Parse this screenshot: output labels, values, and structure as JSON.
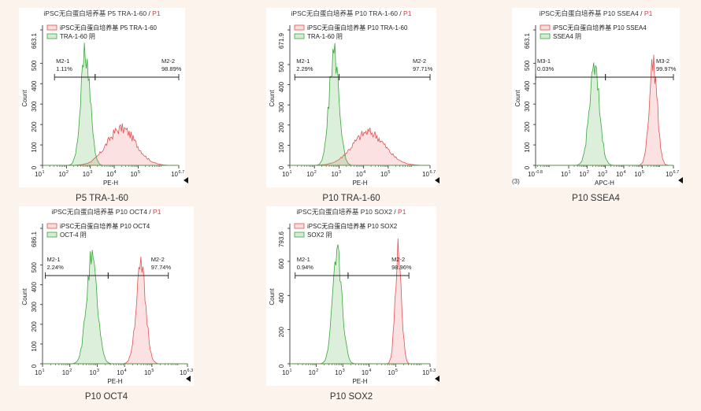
{
  "chart_data": [
    {
      "type": "histogram",
      "title_main": "iPSC无白蛋白培养基 P5 TRA-1-60 / ",
      "title_gate": "P1",
      "ylabel": "Count",
      "xlabel": "PE-H",
      "x_ticks": [
        "10",
        "1",
        "10",
        "2",
        "10",
        "3",
        "10",
        "4",
        "10",
        "5",
        "10",
        "6.7"
      ],
      "y_ticks": [
        "0",
        "100",
        "200",
        "300",
        "400",
        "500",
        "663.1"
      ],
      "xlim_log10": [
        1,
        6.7
      ],
      "ylim": [
        0,
        663.1
      ],
      "legend": [
        "iPSC无白蛋白培养基 P5 TRA-1-60",
        "TRA-1-60 阴"
      ],
      "series": [
        {
          "name": "iPSC无白蛋白培养基 P5 TRA-1-60",
          "color": "#e05252",
          "peak_log10": 4.3,
          "width_log10": 0.6,
          "peak_count": 180
        },
        {
          "name": "TRA-1-60 阴",
          "color": "#3aa63a",
          "peak_log10": 2.8,
          "width_log10": 0.2,
          "peak_count": 540
        }
      ],
      "gates": [
        {
          "name": "M2-1",
          "percent": "1.11%",
          "from_log10": 1.5,
          "to_log10": 3.2
        },
        {
          "name": "M2-2",
          "percent": "98.89%",
          "from_log10": 3.2,
          "to_log10": 6.7
        }
      ],
      "caption": "P5 TRA-1-60"
    },
    {
      "type": "histogram",
      "title_main": "iPSC无白蛋白培养基 P10 TRA-1-60 / ",
      "title_gate": "P1",
      "ylabel": "Count",
      "xlabel": "PE-H",
      "x_ticks": [
        "10",
        "1",
        "10",
        "2",
        "10",
        "3",
        "10",
        "4",
        "10",
        "5",
        "10",
        "6.7"
      ],
      "y_ticks": [
        "0",
        "100",
        "200",
        "300",
        "400",
        "500",
        "671.9"
      ],
      "xlim_log10": [
        1,
        6.7
      ],
      "ylim": [
        0,
        671.9
      ],
      "legend": [
        "iPSC无白蛋白培养基 P10 TRA-1-60",
        "TRA-1-60 阴"
      ],
      "series": [
        {
          "name": "iPSC无白蛋白培养基 P10 TRA-1-60",
          "color": "#e05252",
          "peak_log10": 4.2,
          "width_log10": 0.65,
          "peak_count": 165
        },
        {
          "name": "TRA-1-60 阴",
          "color": "#3aa63a",
          "peak_log10": 2.8,
          "width_log10": 0.2,
          "peak_count": 560
        }
      ],
      "gates": [
        {
          "name": "M2-1",
          "percent": "2.29%",
          "from_log10": 1.2,
          "to_log10": 3.0
        },
        {
          "name": "M2-2",
          "percent": "97.71%",
          "from_log10": 3.0,
          "to_log10": 6.7
        }
      ],
      "caption": "P10 TRA-1-60"
    },
    {
      "type": "histogram",
      "title_main": "iPSC无白蛋白培养基 P10 SSEA4 / ",
      "title_gate": "P1",
      "ylabel": "Count",
      "xlabel": "APC-H",
      "x_ticks": [
        "10",
        "-0.8",
        "10",
        "1",
        "10",
        "2",
        "10",
        "3",
        "10",
        "4",
        "10",
        "5",
        "10",
        "6.7"
      ],
      "y_ticks": [
        "0",
        "100",
        "200",
        "300",
        "400",
        "500",
        "663.1"
      ],
      "xlim_log10": [
        -0.8,
        6.7
      ],
      "ylim": [
        0,
        663.1
      ],
      "legend": [
        "iPSC无白蛋白培养基 P10 SSEA4",
        "SSEA4 阴"
      ],
      "series": [
        {
          "name": "iPSC无白蛋白培养基 P10 SSEA4",
          "color": "#e05252",
          "peak_log10": 5.6,
          "width_log10": 0.22,
          "peak_count": 500
        },
        {
          "name": "SSEA4 阴",
          "color": "#3aa63a",
          "peak_log10": 2.4,
          "width_log10": 0.28,
          "peak_count": 465
        }
      ],
      "gates": [
        {
          "name": "M3-1",
          "percent": "0.03%",
          "from_log10": -0.8,
          "to_log10": 3.0
        },
        {
          "name": "M3-2",
          "percent": "99.97%",
          "from_log10": 3.0,
          "to_log10": 6.7
        }
      ],
      "caption": "P10 SSEA4",
      "extra_label": "(3)"
    },
    {
      "type": "histogram",
      "title_main": "iPSC无白蛋白培养基 P10 OCT4 / ",
      "title_gate": "P1",
      "ylabel": "Count",
      "xlabel": "PE-H",
      "x_ticks": [
        "10",
        "1",
        "10",
        "2",
        "10",
        "3",
        "10",
        "4",
        "10",
        "5",
        "10",
        "6.3"
      ],
      "y_ticks": [
        "0",
        "100",
        "200",
        "300",
        "400",
        "500",
        "686.1"
      ],
      "xlim_log10": [
        1,
        6.3
      ],
      "ylim": [
        0,
        686.1
      ],
      "legend": [
        "iPSC无白蛋白培养基 P10 OCT4",
        "OCT-4 阴"
      ],
      "series": [
        {
          "name": "iPSC无白蛋白培养基 P10 OCT4",
          "color": "#e05252",
          "peak_log10": 4.6,
          "width_log10": 0.18,
          "peak_count": 480
        },
        {
          "name": "OCT-4 阴",
          "color": "#3aa63a",
          "peak_log10": 2.8,
          "width_log10": 0.2,
          "peak_count": 520
        }
      ],
      "gates": [
        {
          "name": "M2-1",
          "percent": "2.24%",
          "from_log10": 1.1,
          "to_log10": 3.4
        },
        {
          "name": "M2-2",
          "percent": "97.74%",
          "from_log10": 3.4,
          "to_log10": 5.6
        }
      ],
      "caption": "P10 OCT4"
    },
    {
      "type": "histogram",
      "title_main": "iPSC无白蛋白培养基 P10 SOX2 / ",
      "title_gate": "P1",
      "ylabel": "Count",
      "xlabel": "PE-H",
      "x_ticks": [
        "10",
        "1",
        "10",
        "2",
        "10",
        "3",
        "10",
        "4",
        "10",
        "5",
        "10",
        "6.3"
      ],
      "y_ticks": [
        "0",
        "200",
        "400",
        "600",
        "793.6"
      ],
      "xlim_log10": [
        1,
        6.3
      ],
      "ylim": [
        0,
        793.6
      ],
      "legend": [
        "iPSC无白蛋白培养基 P10 SOX2",
        "SOX2 阴"
      ],
      "series": [
        {
          "name": "iPSC无白蛋白培养基 P10 SOX2",
          "color": "#e05252",
          "peak_log10": 5.1,
          "width_log10": 0.12,
          "peak_count": 650
        },
        {
          "name": "SOX2 阴",
          "color": "#3aa63a",
          "peak_log10": 2.8,
          "width_log10": 0.18,
          "peak_count": 620
        }
      ],
      "gates": [
        {
          "name": "M2-1",
          "percent": "0.94%",
          "from_log10": 1.2,
          "to_log10": 3.2
        },
        {
          "name": "M2-2",
          "percent": "98.96%",
          "from_log10": 3.2,
          "to_log10": 5.5
        }
      ],
      "caption": "P10 SOX2"
    }
  ]
}
